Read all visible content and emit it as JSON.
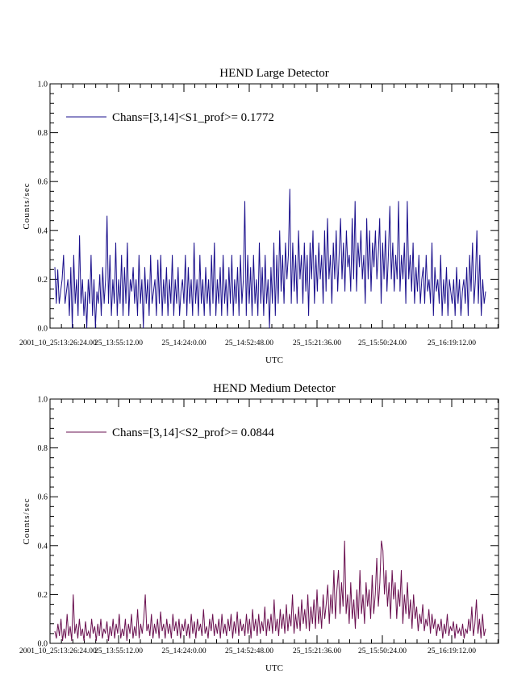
{
  "chart_data": [
    {
      "type": "line",
      "title": "HEND Large Detector",
      "xlabel": "UTC",
      "ylabel": "Counts/sec",
      "ylim": [
        0.0,
        1.0
      ],
      "yticks": [
        "0.0",
        "0.2",
        "0.4",
        "0.6",
        "0.8",
        "1.0"
      ],
      "xticks": [
        "2001_10_25:13:26:24.00",
        "25_13:55:12.00",
        "25_14:24:0.00",
        "25_14:52:48.00",
        "25_15:21:36.00",
        "25_15:50:24.00",
        "25_16:19:12.00"
      ],
      "grid": false,
      "legend_position": "top-left",
      "color": "#1a0f8c",
      "series": [
        {
          "name": "Chans=[3,14]<S1_prof>= 0.1772",
          "values": [
            0.25,
            0.1,
            0.24,
            0.1,
            0.15,
            0.2,
            0.3,
            0.1,
            0.15,
            0.2,
            0.05,
            0.25,
            0.0,
            0.3,
            0.1,
            0.2,
            0.05,
            0.38,
            0.1,
            0.2,
            0.05,
            0.15,
            0.0,
            0.2,
            0.1,
            0.3,
            0.05,
            0.2,
            0.0,
            0.15,
            0.1,
            0.22,
            0.05,
            0.25,
            0.1,
            0.2,
            0.46,
            0.1,
            0.3,
            0.05,
            0.2,
            0.1,
            0.35,
            0.05,
            0.2,
            0.1,
            0.3,
            0.05,
            0.25,
            0.1,
            0.35,
            0.05,
            0.2,
            0.15,
            0.25,
            0.1,
            0.2,
            0.05,
            0.3,
            0.1,
            0.2,
            0.0,
            0.25,
            0.1,
            0.2,
            0.05,
            0.3,
            0.1,
            0.15,
            0.2,
            0.05,
            0.28,
            0.1,
            0.3,
            0.05,
            0.2,
            0.1,
            0.25,
            0.05,
            0.2,
            0.1,
            0.3,
            0.05,
            0.2,
            0.1,
            0.25,
            0.05,
            0.15,
            0.2,
            0.1,
            0.3,
            0.05,
            0.25,
            0.1,
            0.2,
            0.05,
            0.35,
            0.1,
            0.2,
            0.05,
            0.3,
            0.1,
            0.2,
            0.05,
            0.25,
            0.1,
            0.2,
            0.05,
            0.3,
            0.1,
            0.35,
            0.05,
            0.2,
            0.1,
            0.25,
            0.05,
            0.3,
            0.1,
            0.2,
            0.05,
            0.25,
            0.1,
            0.3,
            0.05,
            0.2,
            0.1,
            0.25,
            0.05,
            0.3,
            0.1,
            0.2,
            0.52,
            0.05,
            0.3,
            0.1,
            0.25,
            0.05,
            0.3,
            0.1,
            0.2,
            0.05,
            0.35,
            0.1,
            0.25,
            0.05,
            0.3,
            0.1,
            0.2,
            0.0,
            0.25,
            0.1,
            0.35,
            0.05,
            0.3,
            0.1,
            0.4,
            0.15,
            0.3,
            0.1,
            0.35,
            0.2,
            0.3,
            0.57,
            0.1,
            0.35,
            0.15,
            0.3,
            0.1,
            0.4,
            0.2,
            0.3,
            0.1,
            0.35,
            0.15,
            0.3,
            0.05,
            0.35,
            0.2,
            0.4,
            0.1,
            0.3,
            0.15,
            0.35,
            0.2,
            0.3,
            0.1,
            0.4,
            0.15,
            0.45,
            0.2,
            0.3,
            0.1,
            0.35,
            0.2,
            0.4,
            0.15,
            0.3,
            0.45,
            0.2,
            0.35,
            0.15,
            0.4,
            0.25,
            0.3,
            0.15,
            0.45,
            0.2,
            0.52,
            0.15,
            0.35,
            0.25,
            0.4,
            0.2,
            0.3,
            0.1,
            0.45,
            0.2,
            0.4,
            0.15,
            0.35,
            0.25,
            0.4,
            0.2,
            0.3,
            0.45,
            0.1,
            0.35,
            0.2,
            0.4,
            0.15,
            0.3,
            0.5,
            0.2,
            0.35,
            0.15,
            0.3,
            0.2,
            0.52,
            0.15,
            0.3,
            0.2,
            0.35,
            0.1,
            0.52,
            0.2,
            0.3,
            0.15,
            0.35,
            0.1,
            0.25,
            0.15,
            0.3,
            0.1,
            0.2,
            0.25,
            0.1,
            0.3,
            0.15,
            0.2,
            0.1,
            0.35,
            0.05,
            0.25,
            0.15,
            0.2,
            0.1,
            0.3,
            0.05,
            0.2,
            0.1,
            0.25,
            0.05,
            0.2,
            0.15,
            0.1,
            0.2,
            0.05,
            0.25,
            0.1,
            0.2,
            0.05,
            0.15,
            0.2,
            0.1,
            0.25,
            0.05,
            0.3,
            0.15,
            0.35,
            0.1,
            0.2,
            0.4,
            0.1,
            0.3,
            0.05,
            0.2,
            0.1,
            0.15
          ]
        }
      ]
    },
    {
      "type": "line",
      "title": "HEND Medium Detector",
      "xlabel": "UTC",
      "ylabel": "Counts/sec",
      "ylim": [
        0.0,
        1.0
      ],
      "yticks": [
        "0.0",
        "0.2",
        "0.4",
        "0.6",
        "0.8",
        "1.0"
      ],
      "xticks": [
        "2001_10_25:13:26:24.00",
        "25_13:55:12.00",
        "25_14:24:0.00",
        "25_14:52:48.00",
        "25_15:21:36.00",
        "25_15:50:24.00",
        "25_16:19:12.00"
      ],
      "grid": false,
      "legend_position": "top-left",
      "color": "#6a1050",
      "series": [
        {
          "name": "Chans=[3,14]<S2_prof>= 0.0844",
          "values": [
            0.05,
            0.02,
            0.08,
            0.03,
            0.1,
            0.01,
            0.06,
            0.02,
            0.12,
            0.03,
            0.07,
            0.01,
            0.2,
            0.04,
            0.08,
            0.02,
            0.1,
            0.03,
            0.06,
            0.01,
            0.09,
            0.03,
            0.05,
            0.02,
            0.1,
            0.04,
            0.07,
            0.01,
            0.08,
            0.03,
            0.1,
            0.02,
            0.06,
            0.04,
            0.09,
            0.01,
            0.07,
            0.03,
            0.1,
            0.02,
            0.08,
            0.04,
            0.12,
            0.02,
            0.06,
            0.03,
            0.1,
            0.01,
            0.08,
            0.04,
            0.12,
            0.02,
            0.07,
            0.03,
            0.14,
            0.02,
            0.08,
            0.04,
            0.1,
            0.2,
            0.05,
            0.08,
            0.03,
            0.12,
            0.02,
            0.08,
            0.04,
            0.1,
            0.02,
            0.13,
            0.05,
            0.08,
            0.02,
            0.1,
            0.04,
            0.08,
            0.02,
            0.12,
            0.05,
            0.09,
            0.03,
            0.1,
            0.02,
            0.08,
            0.05,
            0.1,
            0.03,
            0.08,
            0.02,
            0.12,
            0.04,
            0.09,
            0.02,
            0.1,
            0.05,
            0.08,
            0.03,
            0.14,
            0.04,
            0.07,
            0.02,
            0.1,
            0.05,
            0.12,
            0.03,
            0.08,
            0.04,
            0.1,
            0.02,
            0.12,
            0.04,
            0.08,
            0.03,
            0.1,
            0.05,
            0.12,
            0.02,
            0.09,
            0.04,
            0.13,
            0.03,
            0.1,
            0.05,
            0.08,
            0.03,
            0.12,
            0.04,
            0.1,
            0.02,
            0.14,
            0.05,
            0.1,
            0.03,
            0.12,
            0.04,
            0.09,
            0.05,
            0.15,
            0.03,
            0.1,
            0.05,
            0.12,
            0.04,
            0.18,
            0.05,
            0.1,
            0.03,
            0.14,
            0.06,
            0.12,
            0.04,
            0.16,
            0.05,
            0.12,
            0.07,
            0.2,
            0.04,
            0.12,
            0.06,
            0.15,
            0.05,
            0.18,
            0.08,
            0.14,
            0.06,
            0.2,
            0.05,
            0.15,
            0.08,
            0.18,
            0.06,
            0.22,
            0.08,
            0.15,
            0.06,
            0.2,
            0.1,
            0.16,
            0.24,
            0.08,
            0.2,
            0.12,
            0.3,
            0.1,
            0.22,
            0.3,
            0.12,
            0.25,
            0.15,
            0.42,
            0.12,
            0.2,
            0.08,
            0.25,
            0.1,
            0.18,
            0.06,
            0.22,
            0.1,
            0.3,
            0.12,
            0.2,
            0.08,
            0.25,
            0.15,
            0.22,
            0.1,
            0.28,
            0.12,
            0.2,
            0.35,
            0.15,
            0.25,
            0.42,
            0.38,
            0.2,
            0.3,
            0.15,
            0.25,
            0.1,
            0.3,
            0.18,
            0.25,
            0.1,
            0.22,
            0.15,
            0.3,
            0.08,
            0.2,
            0.12,
            0.25,
            0.1,
            0.18,
            0.06,
            0.2,
            0.1,
            0.15,
            0.05,
            0.12,
            0.08,
            0.16,
            0.05,
            0.1,
            0.07,
            0.14,
            0.04,
            0.12,
            0.06,
            0.1,
            0.03,
            0.08,
            0.05,
            0.1,
            0.02,
            0.08,
            0.04,
            0.12,
            0.03,
            0.07,
            0.05,
            0.09,
            0.02,
            0.08,
            0.04,
            0.06,
            0.03,
            0.08,
            0.02,
            0.06,
            0.04,
            0.1,
            0.05,
            0.15,
            0.03,
            0.08,
            0.18,
            0.04,
            0.1,
            0.02,
            0.12,
            0.03,
            0.06
          ]
        }
      ]
    }
  ]
}
